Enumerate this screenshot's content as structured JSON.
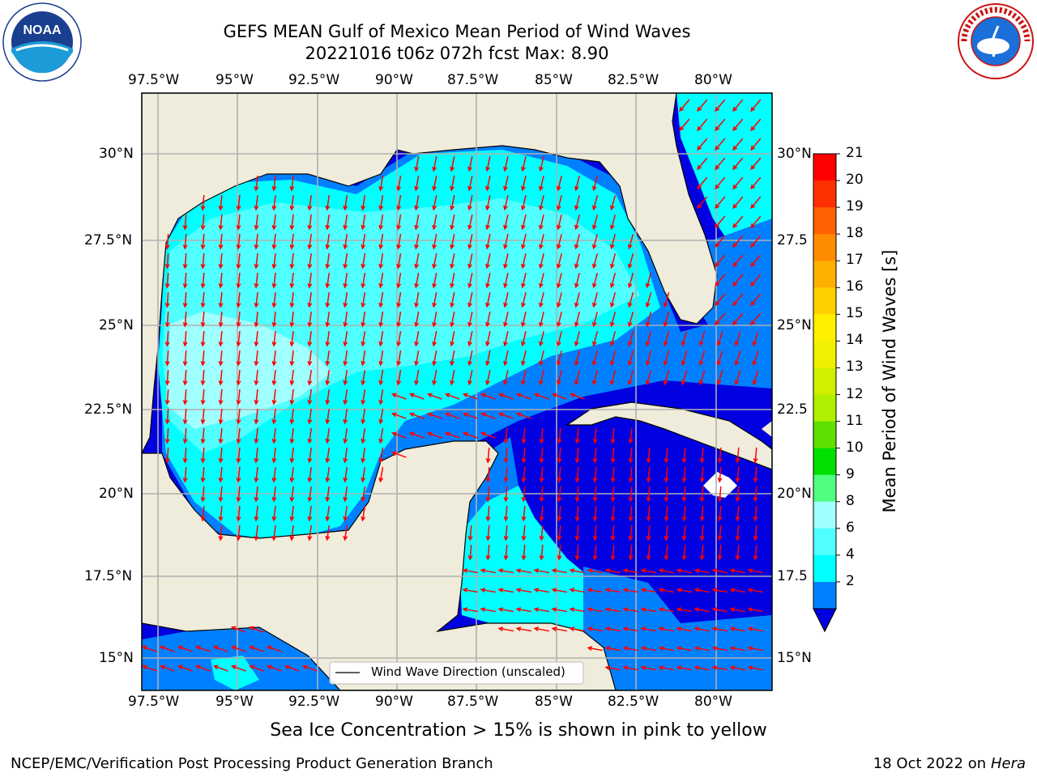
{
  "header": {
    "title_line1": "GEFS MEAN Gulf of Mexico Mean Period of Wind Waves",
    "title_line2": "20221016 t06z 072h fcst   Max: 8.90"
  },
  "logos": {
    "left": {
      "icon": "noaa-logo",
      "text": "NOAA"
    },
    "right": {
      "icon": "nws-logo",
      "text": "NATIONAL WEATHER SERVICE"
    }
  },
  "map": {
    "lon_ticks": [
      "97.5°W",
      "95°W",
      "92.5°W",
      "90°W",
      "87.5°W",
      "85°W",
      "82.5°W",
      "80°W"
    ],
    "lat_ticks_left": [
      "30°N",
      "27.5°N",
      "25°N",
      "22.5°N",
      "20°N",
      "17.5°N",
      "15°N"
    ],
    "lat_ticks_right": [
      "30°N",
      "27.5",
      "25°N",
      "22.5",
      "20°N",
      "17.5",
      "15°N"
    ],
    "legend_label": "Wind Wave Direction (unscaled)",
    "land_color": "#efecdb",
    "arrow_color": "#ff0000"
  },
  "colorbar": {
    "label": "Mean Period of Wind Waves [s]",
    "ticks": [
      "21",
      "20",
      "19",
      "18",
      "17",
      "16",
      "15",
      "14",
      "13",
      "12",
      "11",
      "10",
      "9",
      "8",
      "6",
      "4",
      "2"
    ],
    "colors": [
      "#ff0000",
      "#ff3000",
      "#ff6000",
      "#ff8c00",
      "#ffb000",
      "#ffd000",
      "#fff000",
      "#f0f000",
      "#d0f000",
      "#b0f000",
      "#60e000",
      "#00e000",
      "#50ff80",
      "#a0ffff",
      "#50ffff",
      "#00ffff",
      "#0080ff"
    ],
    "extend_color": "#0000e0"
  },
  "notes": {
    "sea_ice": "Sea Ice Concentration > 15% is shown in pink to yellow"
  },
  "footer": {
    "left": "NCEP/EMC/Verification Post Processing Product Generation Branch",
    "date": "18 Oct 2022 on ",
    "machine": "Hera"
  }
}
